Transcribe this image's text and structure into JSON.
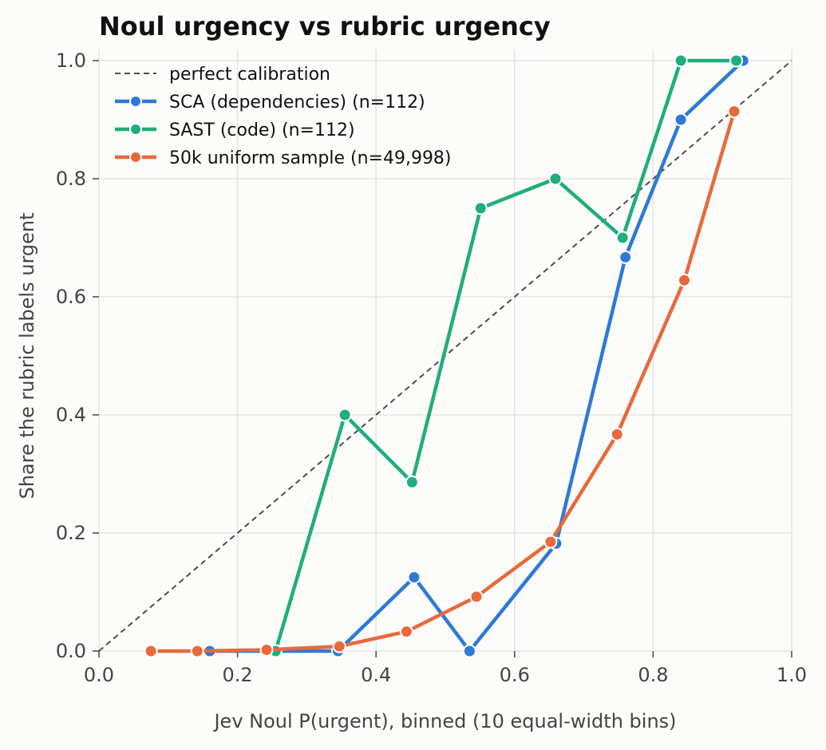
{
  "chart_data": {
    "type": "line",
    "title": "Noul urgency vs rubric urgency",
    "xlabel": "Jev Noul P(urgent), binned (10 equal-width bins)",
    "ylabel": "Share the rubric labels urgent",
    "xlim": [
      0,
      1
    ],
    "ylim": [
      0,
      1
    ],
    "xticks": [
      "0.0",
      "0.2",
      "0.4",
      "0.6",
      "0.8",
      "1.0"
    ],
    "yticks": [
      "0.0",
      "0.2",
      "0.4",
      "0.6",
      "0.8",
      "1.0"
    ],
    "grid": true,
    "legend_position": "top-left",
    "reference": {
      "name": "perfect calibration",
      "color": "#4d4d4d",
      "x": [
        0,
        1
      ],
      "y": [
        0,
        1
      ]
    },
    "series": [
      {
        "name": "SCA (dependencies) (n=112)",
        "color": "#2e79d6",
        "x": [
          0.16,
          0.25,
          0.345,
          0.455,
          0.535,
          0.66,
          0.76,
          0.84,
          0.93
        ],
        "y": [
          0.0,
          0.0,
          0.0,
          0.125,
          0.0,
          0.182,
          0.667,
          0.9,
          1.0
        ]
      },
      {
        "name": "SAST (code) (n=112)",
        "color": "#1fae7c",
        "x": [
          0.255,
          0.355,
          0.452,
          0.551,
          0.659,
          0.756,
          0.84,
          0.92
        ],
        "y": [
          0.0,
          0.4,
          0.286,
          0.75,
          0.8,
          0.7,
          1.0,
          1.0
        ]
      },
      {
        "name": "50k uniform sample (n=49,998)",
        "color": "#e8693b",
        "x": [
          0.075,
          0.142,
          0.242,
          0.347,
          0.444,
          0.545,
          0.652,
          0.748,
          0.845,
          0.917
        ],
        "y": [
          0.0,
          0.0,
          0.002,
          0.008,
          0.033,
          0.092,
          0.185,
          0.367,
          0.628,
          0.914
        ]
      }
    ]
  }
}
